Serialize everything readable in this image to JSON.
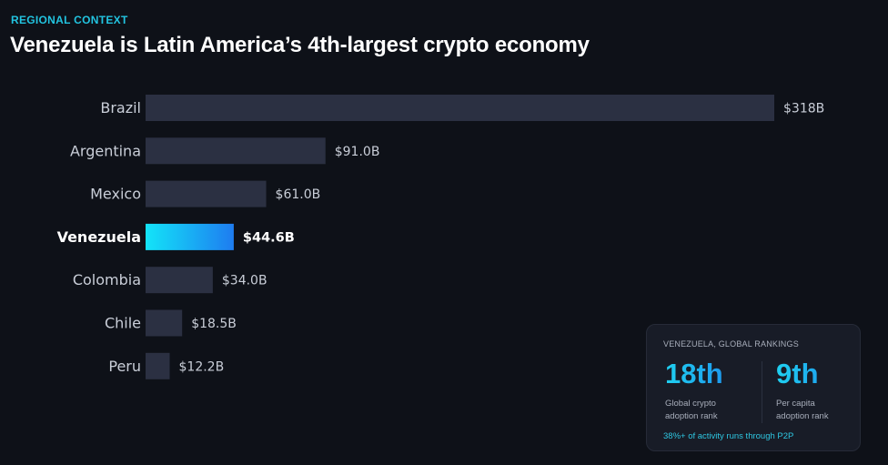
{
  "header": {
    "eyebrow": "REGIONAL CONTEXT",
    "title": "Venezuela is Latin America’s 4th-largest crypto economy"
  },
  "chart_data": {
    "type": "bar",
    "orientation": "horizontal",
    "unit": "USD billions",
    "categories": [
      "Brazil",
      "Argentina",
      "Mexico",
      "Venezuela",
      "Colombia",
      "Chile",
      "Peru"
    ],
    "values": [
      318,
      91.0,
      61.0,
      44.6,
      34.0,
      18.5,
      12.2
    ],
    "value_labels": [
      "$318B",
      "$91.0B",
      "$61.0B",
      "$44.6B",
      "$34.0B",
      "$18.5B",
      "$12.2B"
    ],
    "highlight": "Venezuela",
    "xlim": [
      0,
      318
    ],
    "grid": false,
    "legend": "none",
    "colors": {
      "bar": "#2b3042",
      "highlight_start": "#13e4f8",
      "highlight_end": "#1e7cf0"
    }
  },
  "card": {
    "title": "VENEZUELA, GLOBAL RANKINGS",
    "stats": [
      {
        "value": "18th",
        "desc": "Global crypto adoption rank"
      },
      {
        "value": "9th",
        "desc": "Per capita adoption rank"
      }
    ],
    "footnote": "38%+ of activity runs through P2P"
  }
}
